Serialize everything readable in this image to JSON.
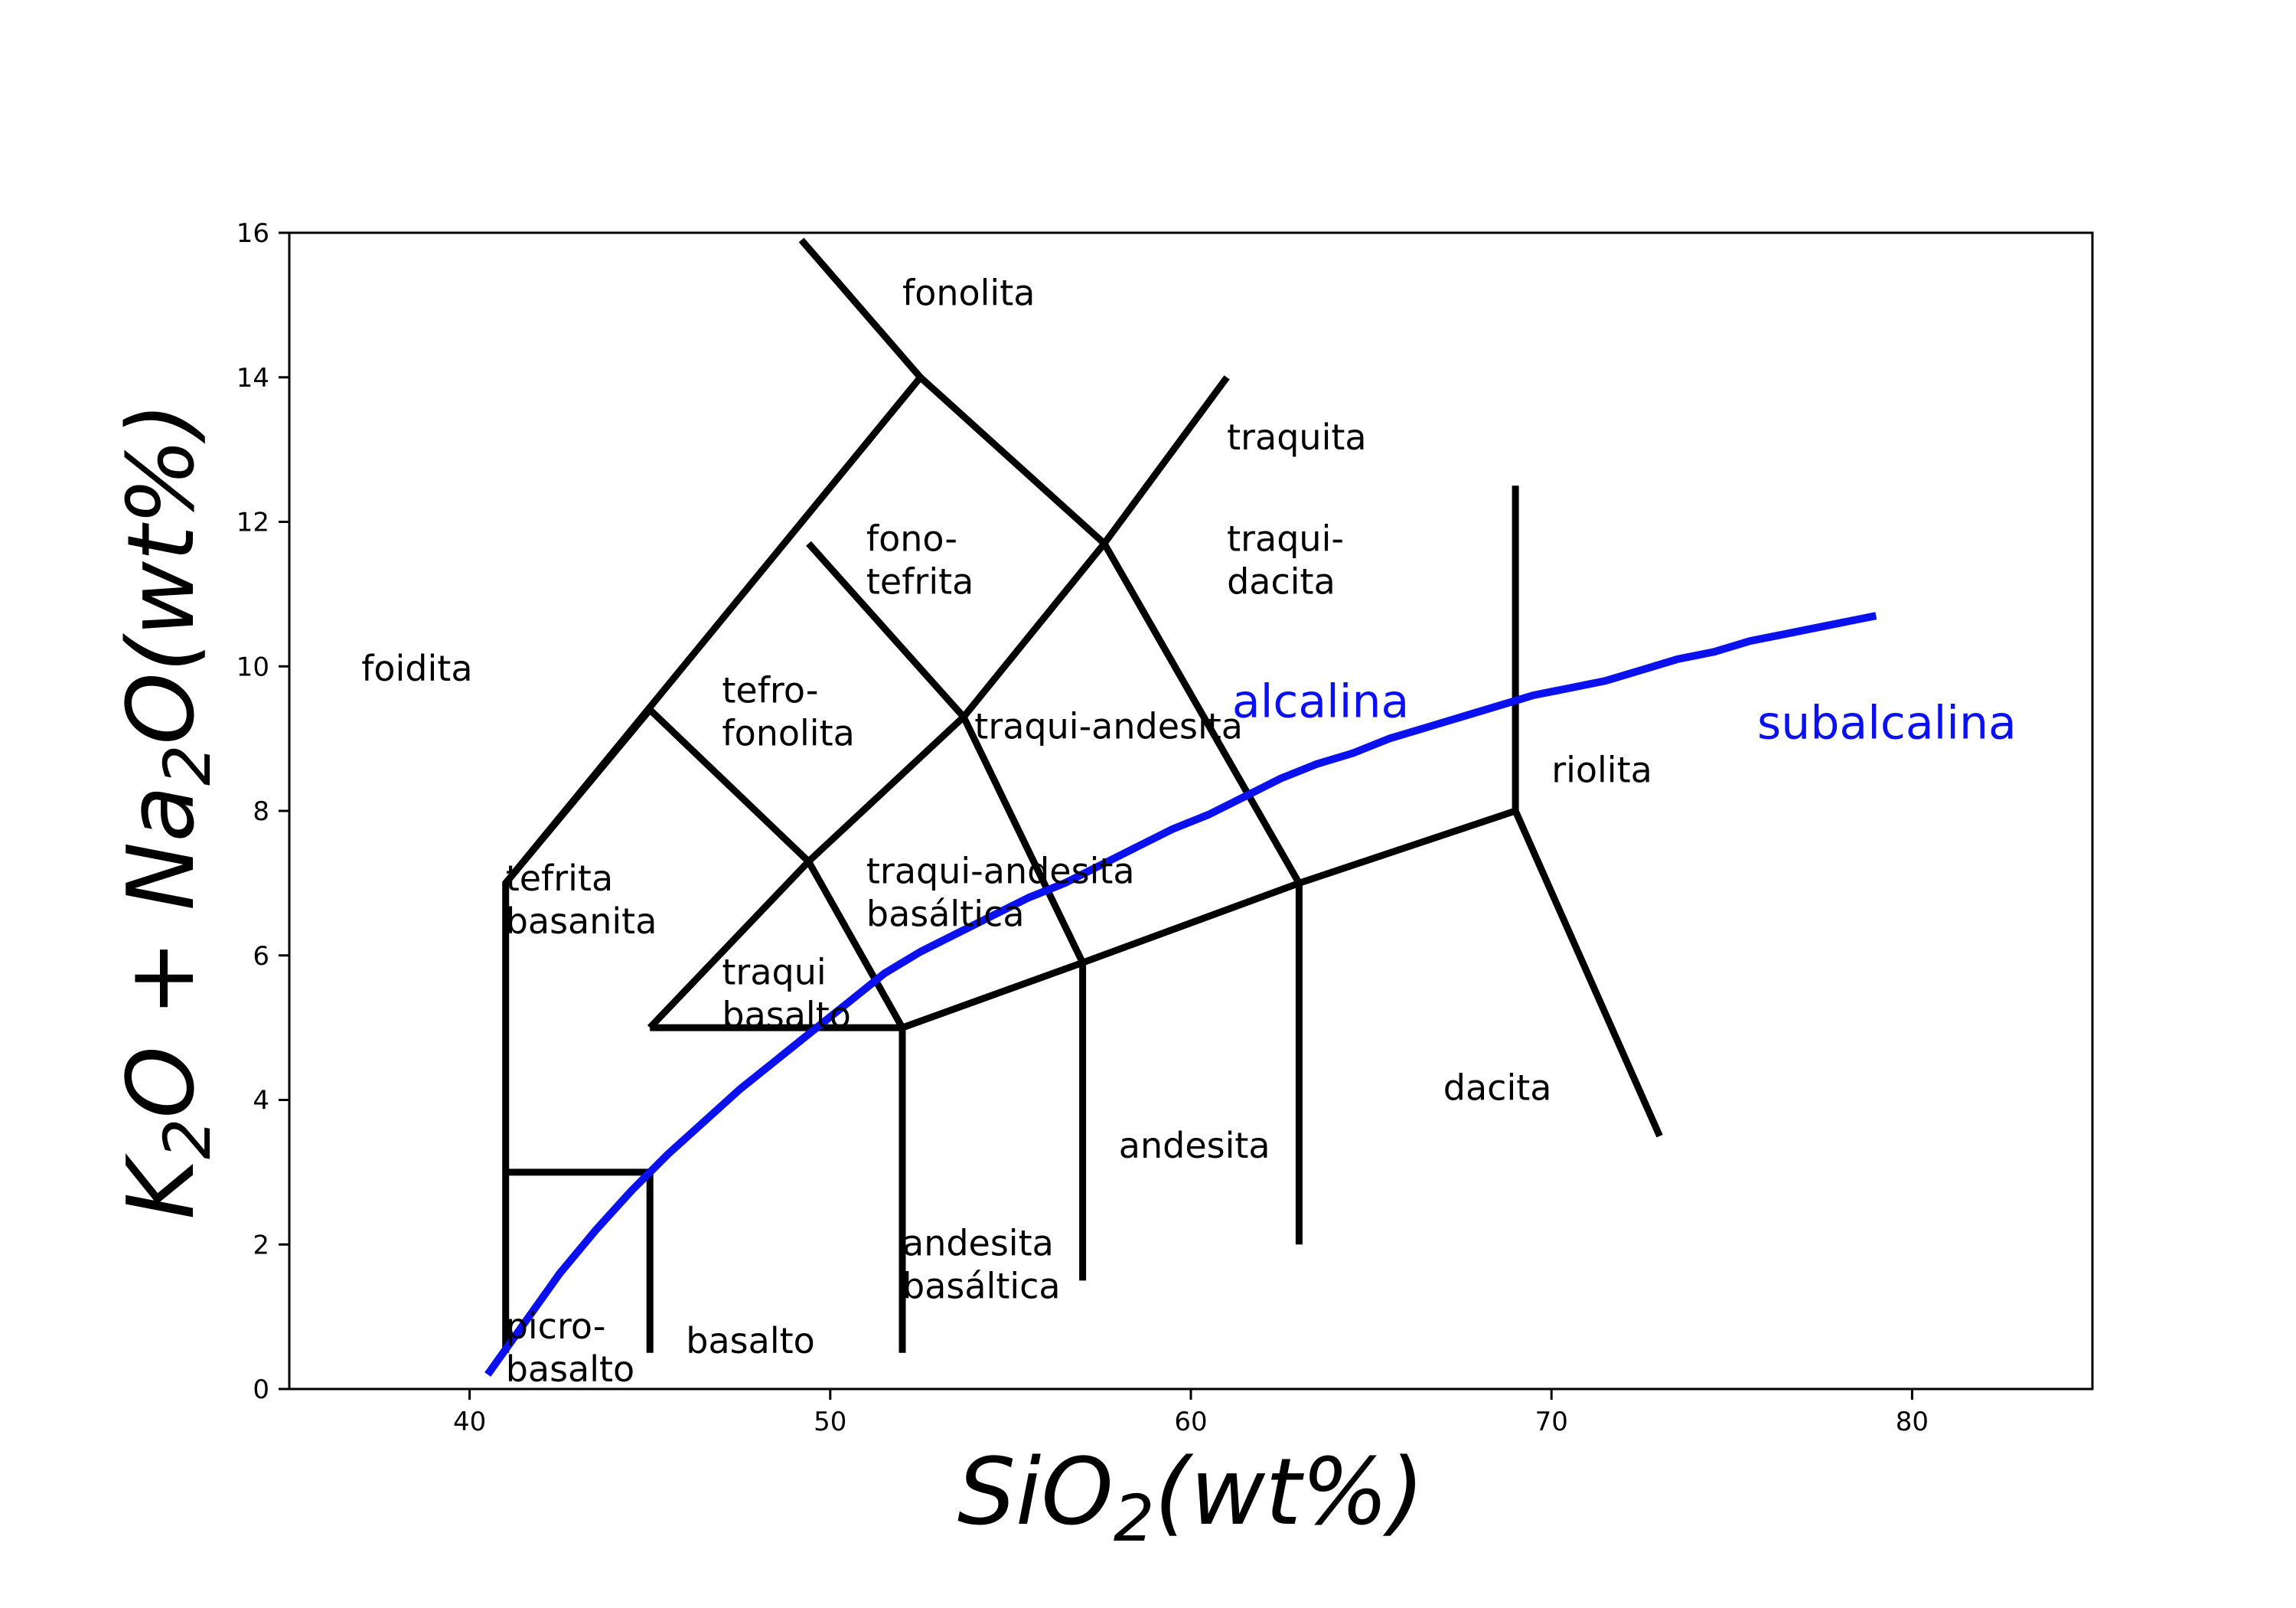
{
  "chart_data": {
    "type": "line",
    "title": "",
    "xlabel": {
      "main": "SiO",
      "sub": "2",
      "tail": "(wt%)"
    },
    "ylabel": {
      "p1": "K",
      "s1": "2",
      "p2": "O + Na",
      "s2": "2",
      "p3": "O(wt%)"
    },
    "xlim": [
      35,
      85
    ],
    "ylim": [
      0,
      16
    ],
    "xticks": [
      40,
      50,
      60,
      70,
      80
    ],
    "yticks": [
      0,
      2,
      4,
      6,
      8,
      10,
      12,
      14,
      16
    ],
    "grid": false,
    "boundaries": [
      {
        "x": [
          41,
          41,
          52.5
        ],
        "y": [
          0.5,
          7.0,
          14.0
        ]
      },
      {
        "x": [
          45,
          45,
          41
        ],
        "y": [
          0.5,
          3.0,
          3.0
        ]
      },
      {
        "x": [
          45,
          49.4,
          53.7,
          57.6,
          61
        ],
        "y": [
          5.0,
          7.3,
          9.3,
          11.7,
          14.0
        ]
      },
      {
        "x": [
          45,
          52,
          57,
          63,
          69,
          69
        ],
        "y": [
          5.0,
          5.0,
          5.9,
          7.0,
          8.0,
          12.5
        ]
      },
      {
        "x": [
          52,
          52
        ],
        "y": [
          0.5,
          5.0
        ]
      },
      {
        "x": [
          57,
          57
        ],
        "y": [
          1.5,
          5.9
        ]
      },
      {
        "x": [
          63,
          63
        ],
        "y": [
          2.0,
          7.0
        ]
      },
      {
        "x": [
          69,
          73
        ],
        "y": [
          8.0,
          3.5
        ]
      },
      {
        "x": [
          52,
          49.4,
          45,
          41
        ],
        "y": [
          5.0,
          7.3,
          9.4,
          7.0
        ]
      },
      {
        "x": [
          57,
          53.7,
          49.4
        ],
        "y": [
          5.9,
          9.3,
          11.7
        ]
      },
      {
        "x": [
          63,
          57.6,
          52.5,
          49.2
        ],
        "y": [
          7.0,
          11.7,
          14.0,
          15.9
        ]
      }
    ],
    "series": [
      {
        "name": "alcalina / subalcalina",
        "color": "#0a10ee",
        "x": [
          40.5,
          41.5,
          42.5,
          43.5,
          44.5,
          45.5,
          46.5,
          47.5,
          48.5,
          49.5,
          50.5,
          51.5,
          52.5,
          53.5,
          54.5,
          55.5,
          56.5,
          57.5,
          58.5,
          59.5,
          60.5,
          61.5,
          62.5,
          63.5,
          64.5,
          65.5,
          66.5,
          67.5,
          68.5,
          69.5,
          70.5,
          71.5,
          72.5,
          73.5,
          74.5,
          75.5,
          76.5,
          77.5,
          78.5,
          79.0
        ],
        "y": [
          0.2,
          0.9,
          1.6,
          2.2,
          2.75,
          3.25,
          3.7,
          4.15,
          4.55,
          4.95,
          5.35,
          5.75,
          6.05,
          6.3,
          6.55,
          6.8,
          7.0,
          7.25,
          7.5,
          7.75,
          7.95,
          8.2,
          8.45,
          8.65,
          8.8,
          9.0,
          9.15,
          9.3,
          9.45,
          9.6,
          9.7,
          9.8,
          9.95,
          10.1,
          10.2,
          10.35,
          10.45,
          10.55,
          10.65,
          10.7
        ]
      }
    ],
    "region_labels": [
      {
        "lines": [
          "fonolita"
        ],
        "x": 52.0,
        "y": 15.0
      },
      {
        "lines": [
          "traquita"
        ],
        "x": 61.0,
        "y": 13.0
      },
      {
        "lines": [
          "fono-",
          "tefrita"
        ],
        "x": 51.0,
        "y": 11.6
      },
      {
        "lines": [
          "traqui-",
          "dacita"
        ],
        "x": 61.0,
        "y": 11.6
      },
      {
        "lines": [
          "foidita"
        ],
        "x": 37.0,
        "y": 9.8
      },
      {
        "lines": [
          "tefro-",
          "fonolita"
        ],
        "x": 47.0,
        "y": 9.5
      },
      {
        "lines": [
          "traqui-andesita"
        ],
        "x": 54.0,
        "y": 9.0
      },
      {
        "lines": [
          "riolita"
        ],
        "x": 70.0,
        "y": 8.4
      },
      {
        "lines": [
          "tefrita",
          "basanita"
        ],
        "x": 41.0,
        "y": 6.9
      },
      {
        "lines": [
          "traqui-andesita",
          "basáltica"
        ],
        "x": 51.0,
        "y": 7.0
      },
      {
        "lines": [
          "traqui",
          "basalto"
        ],
        "x": 47.0,
        "y": 5.6
      },
      {
        "lines": [
          "dacita"
        ],
        "x": 67.0,
        "y": 4.0
      },
      {
        "lines": [
          "andesita"
        ],
        "x": 58.0,
        "y": 3.2
      },
      {
        "lines": [
          "andesita",
          "basáltica"
        ],
        "x": 52.0,
        "y": 1.85
      },
      {
        "lines": [
          "basalto"
        ],
        "x": 46.0,
        "y": 0.5
      },
      {
        "lines": [
          "picro-",
          "basalto"
        ],
        "x": 41.0,
        "y": 0.7
      }
    ],
    "series_labels": [
      {
        "text": "alcalina",
        "color": "#0a10ee",
        "x": 63.6,
        "y": 9.3
      },
      {
        "text": "subalcalina",
        "color": "#0a10ee",
        "x": 79.3,
        "y": 9.0
      }
    ]
  }
}
